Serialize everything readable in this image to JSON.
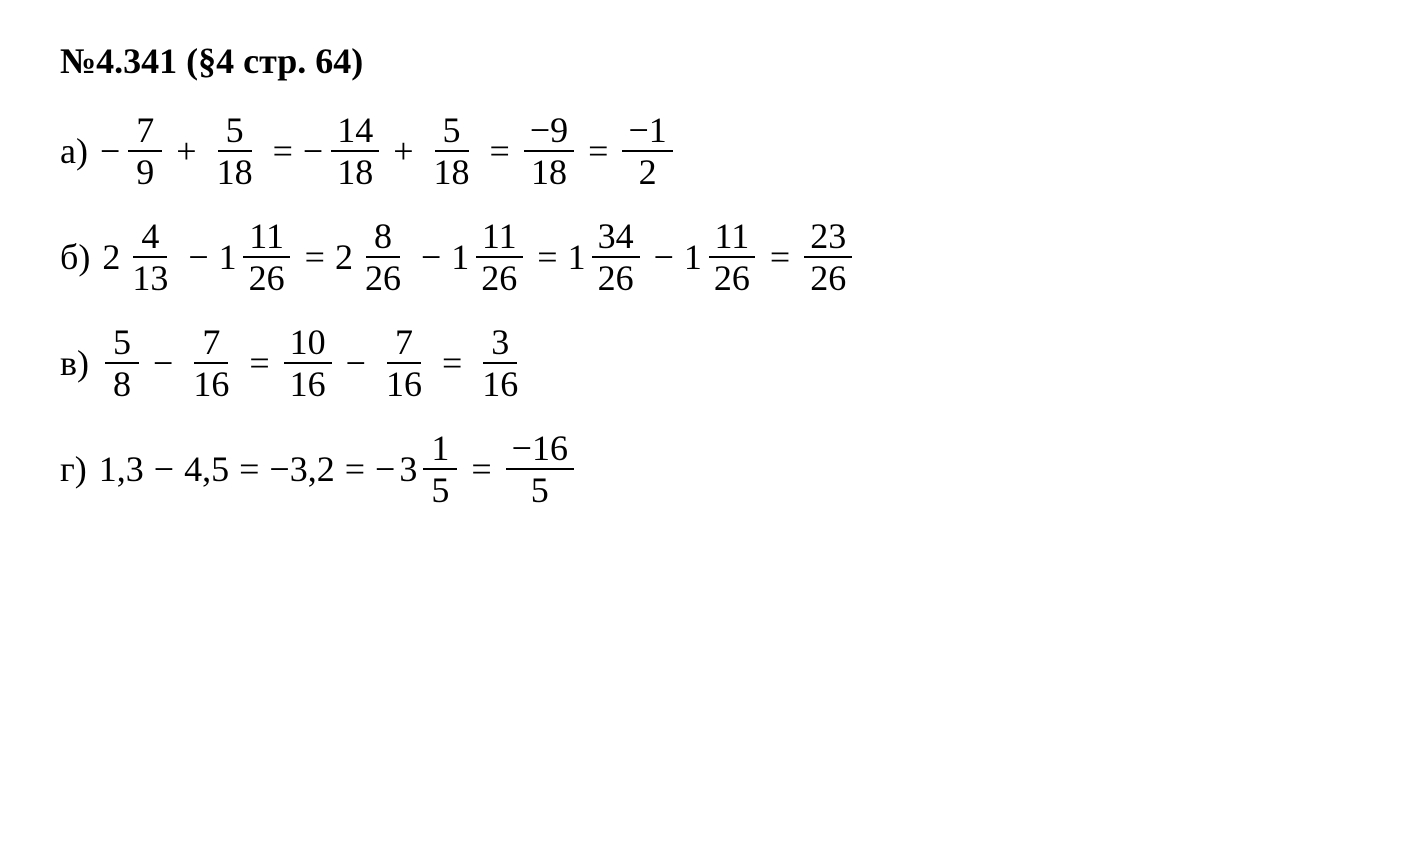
{
  "title": "№4.341 (§4 стр. 64)",
  "colors": {
    "text": "#000000",
    "background": "#ffffff"
  },
  "font": {
    "family": "Times New Roman",
    "size_pt": 28,
    "title_size_pt": 28,
    "title_weight": "bold"
  },
  "lines": {
    "a": {
      "label": "а)",
      "t1_num": "7",
      "t1_den": "9",
      "t2_num": "5",
      "t2_den": "18",
      "t3_num": "14",
      "t3_den": "18",
      "t4_num": "5",
      "t4_den": "18",
      "t5_num": "−9",
      "t5_den": "18",
      "t6_num": "−1",
      "t6_den": "2"
    },
    "b": {
      "label": "б)",
      "m1_whole": "2",
      "m1_num": "4",
      "m1_den": "13",
      "m2_whole": "1",
      "m2_num": "11",
      "m2_den": "26",
      "m3_whole": "2",
      "m3_num": "8",
      "m3_den": "26",
      "m4_whole": "1",
      "m4_num": "11",
      "m4_den": "26",
      "m5_whole": "1",
      "m5_num": "34",
      "m5_den": "26",
      "m6_whole": "1",
      "m6_num": "11",
      "m6_den": "26",
      "r_num": "23",
      "r_den": "26"
    },
    "c": {
      "label": "в)",
      "t1_num": "5",
      "t1_den": "8",
      "t2_num": "7",
      "t2_den": "16",
      "t3_num": "10",
      "t3_den": "16",
      "t4_num": "7",
      "t4_den": "16",
      "t5_num": "3",
      "t5_den": "16"
    },
    "d": {
      "label": "г)",
      "d1": "1,3",
      "d2": "4,5",
      "d3": "−3,2",
      "m_whole": "3",
      "m_num": "1",
      "m_den": "5",
      "r_num": "−16",
      "r_den": "5"
    }
  }
}
